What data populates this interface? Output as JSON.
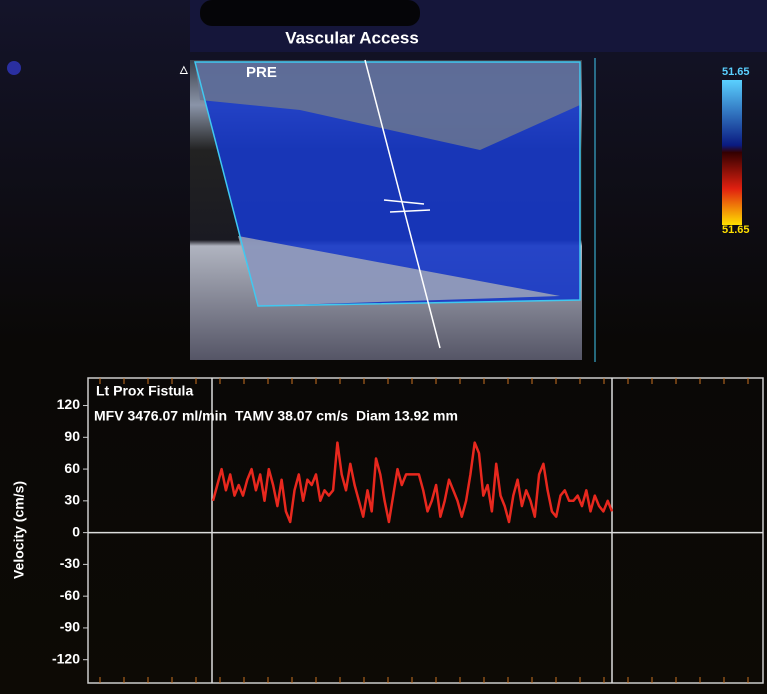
{
  "header": {
    "title": "Vascular Access"
  },
  "image": {
    "label": "PRE",
    "scale_top": "51.65",
    "scale_bottom": "51.65"
  },
  "chart_data": {
    "type": "line",
    "title": "Lt Prox Fistula",
    "subtitle": "MFV 3476.07 ml/min  TAMV 38.07 cm/s  Diam 13.92 mm",
    "y_label": "Velocity (cm/s)",
    "ylim": [
      -142,
      146
    ],
    "yticks": [
      120,
      90,
      60,
      30,
      0,
      -30,
      -60,
      -90,
      -120
    ],
    "series": [
      {
        "color": "#e8281e",
        "values": [
          30,
          45,
          60,
          40,
          55,
          35,
          45,
          35,
          50,
          60,
          40,
          55,
          30,
          60,
          45,
          25,
          50,
          20,
          10,
          40,
          55,
          30,
          50,
          45,
          55,
          30,
          40,
          35,
          40,
          85,
          55,
          40,
          65,
          45,
          30,
          15,
          40,
          20,
          70,
          55,
          30,
          10,
          35,
          60,
          45,
          55,
          55,
          55,
          55,
          40,
          20,
          30,
          45,
          15,
          30,
          50,
          40,
          30,
          15,
          30,
          55,
          85,
          75,
          35,
          45,
          20,
          65,
          35,
          25,
          10,
          35,
          50,
          25,
          40,
          30,
          15,
          55,
          65,
          40,
          20,
          15,
          35,
          40,
          30,
          30,
          35,
          25,
          40,
          20,
          35,
          25,
          20,
          30,
          20
        ]
      }
    ]
  }
}
